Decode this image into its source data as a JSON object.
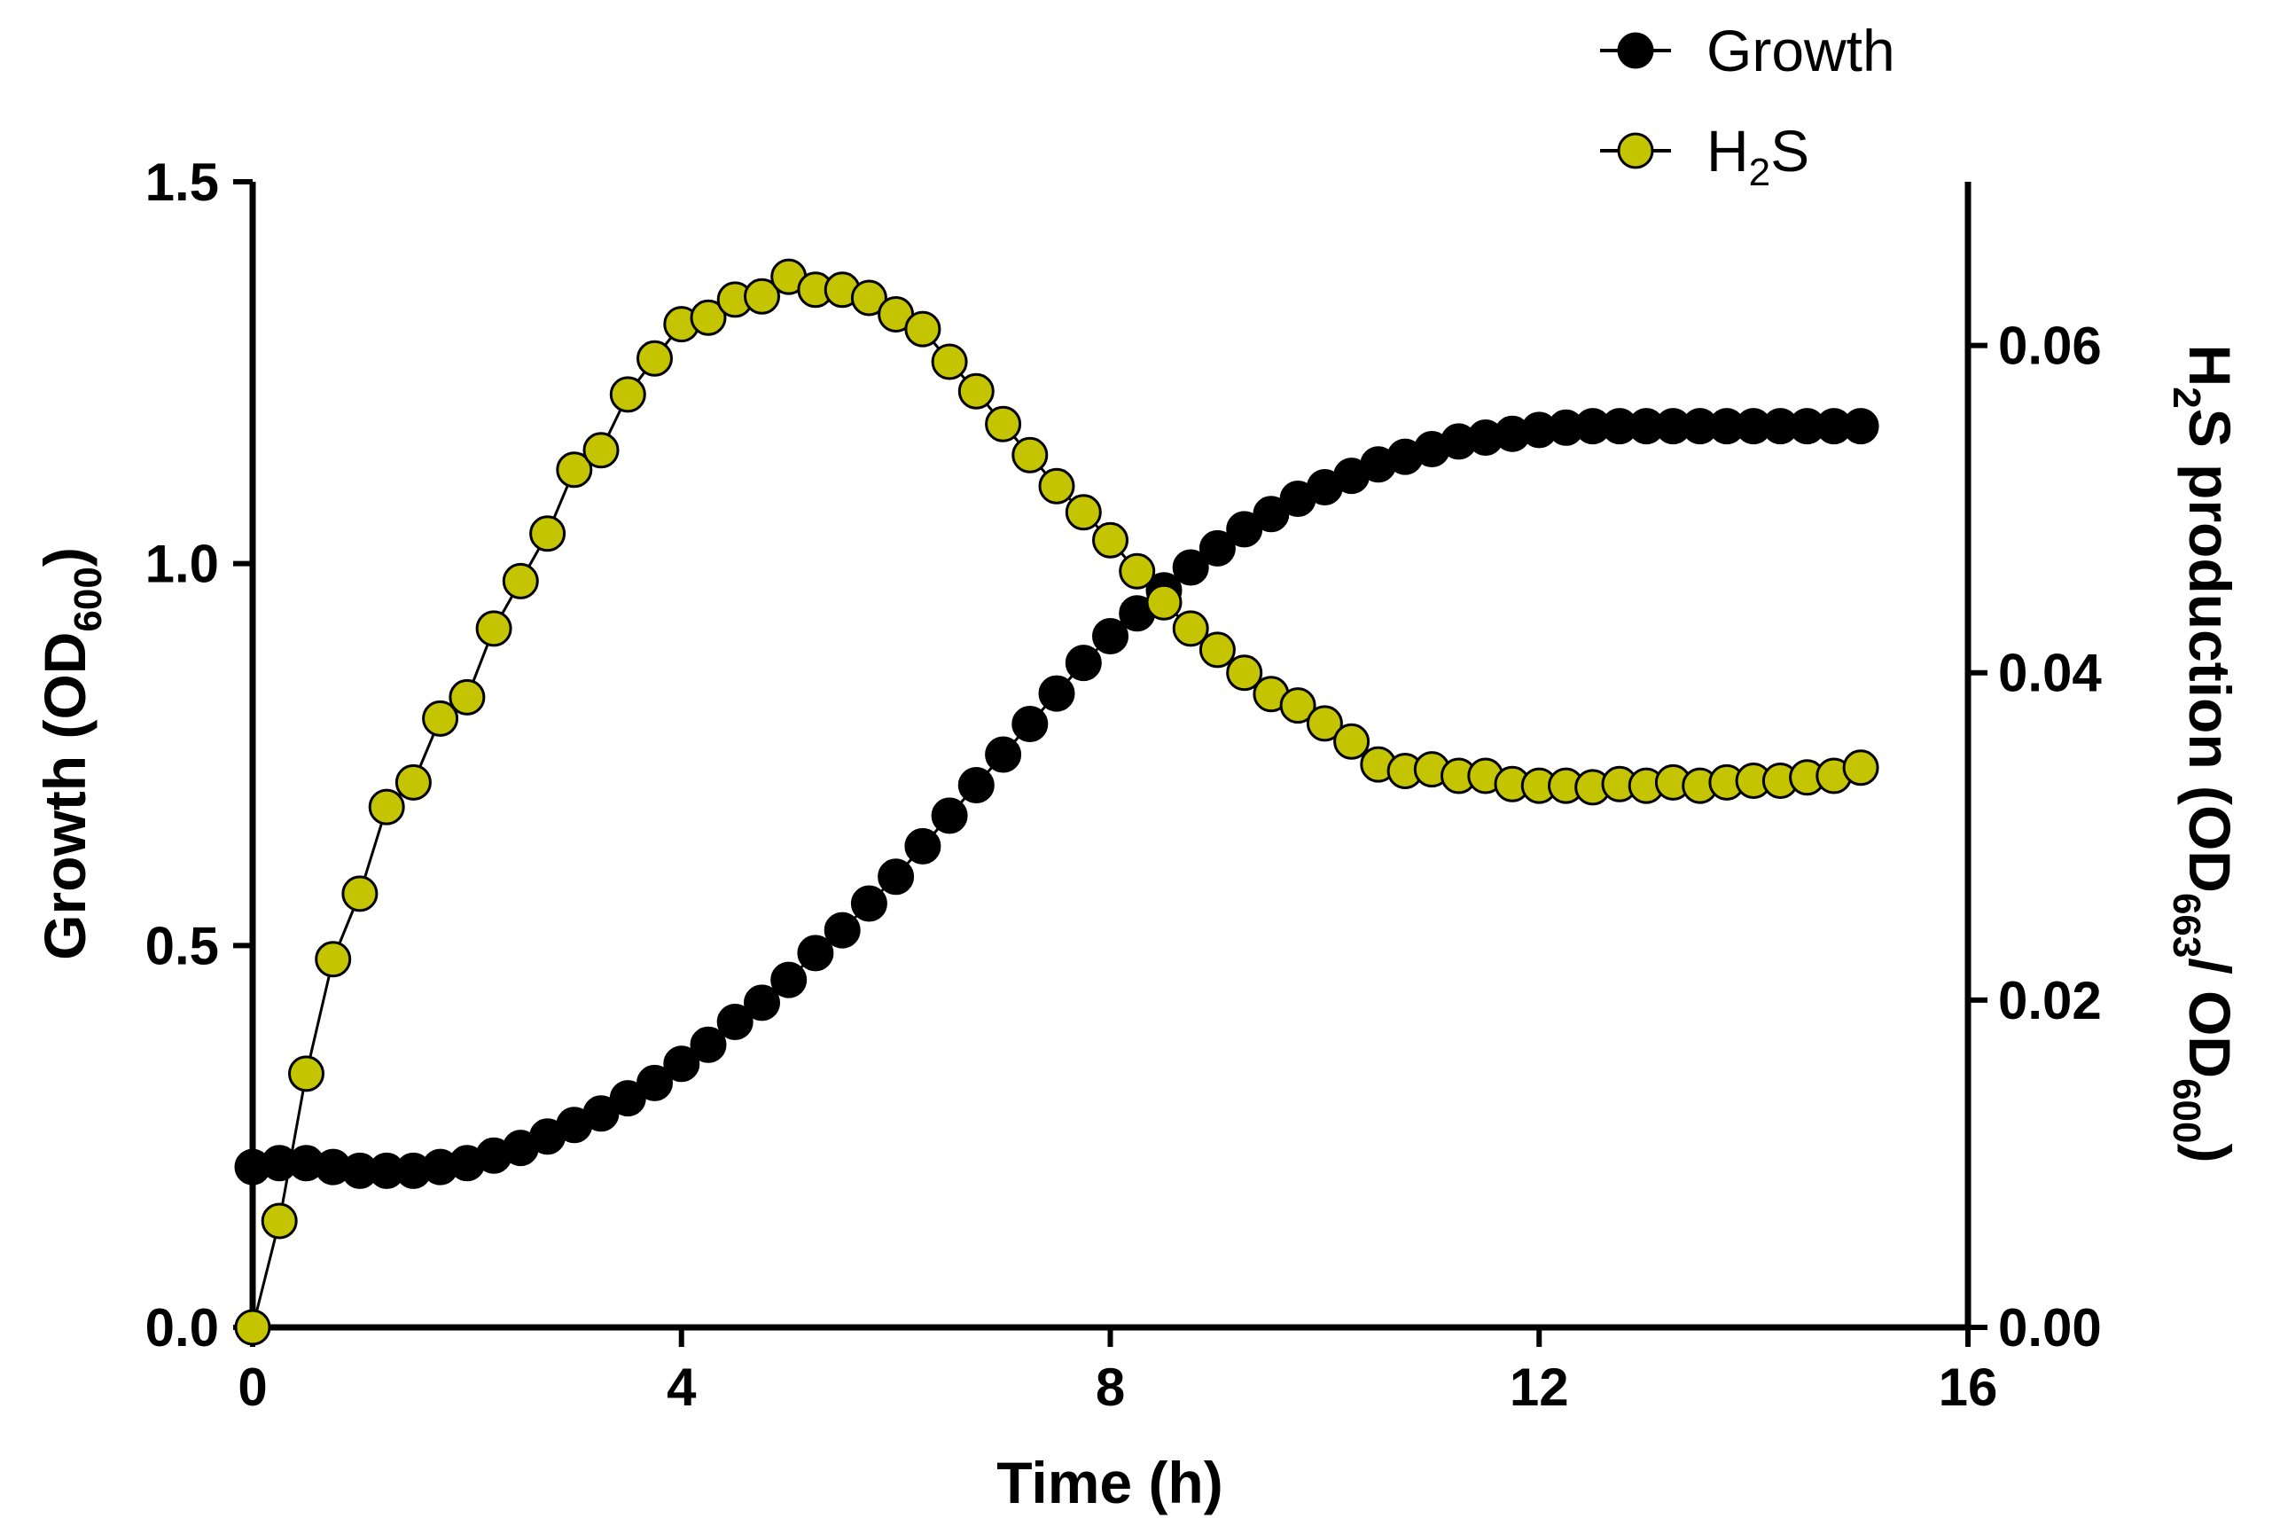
{
  "chart_data": {
    "type": "line",
    "title": "",
    "xlabel": "Time (h)",
    "ylabel": {
      "main": "Growth (OD",
      "sub": "600",
      "end": ")"
    },
    "y2label": {
      "h": "H",
      "h_sub": "2",
      "rest": "S production  (OD",
      "sub1": "663",
      "mid": "/ OD",
      "sub2": "600",
      "end": ")"
    },
    "xlim": [
      0,
      16
    ],
    "ylim": [
      0,
      1.5
    ],
    "y2lim": [
      0,
      0.07
    ],
    "x_ticks": [
      "0",
      "4",
      "8",
      "12",
      "16"
    ],
    "y_ticks": [
      "0.0",
      "0.5",
      "1.0",
      "1.5"
    ],
    "y2_ticks": [
      "0.00",
      "0.02",
      "0.04",
      "0.06"
    ],
    "legend": {
      "position": "top-right",
      "growth": "Growth",
      "h2s_h": "H",
      "h2s_sub": "2",
      "h2s_s": "S"
    },
    "series": [
      {
        "name": "Growth",
        "axis": "left",
        "color": "#000000",
        "edge": "#000000",
        "x": [
          0,
          0.25,
          0.5,
          0.75,
          1,
          1.25,
          1.5,
          1.75,
          2,
          2.25,
          2.5,
          2.75,
          3,
          3.25,
          3.5,
          3.75,
          4,
          4.25,
          4.5,
          4.75,
          5,
          5.25,
          5.5,
          5.75,
          6,
          6.25,
          6.5,
          6.75,
          7,
          7.25,
          7.5,
          7.75,
          8,
          8.25,
          8.5,
          8.75,
          9,
          9.25,
          9.5,
          9.75,
          10,
          10.25,
          10.5,
          10.75,
          11,
          11.25,
          11.5,
          11.75,
          12,
          12.25,
          12.5,
          12.75,
          13,
          13.25,
          13.5,
          13.75,
          14,
          14.25,
          14.5,
          14.75,
          15
        ],
        "values": [
          0.21,
          0.215,
          0.215,
          0.21,
          0.205,
          0.205,
          0.205,
          0.21,
          0.215,
          0.225,
          0.235,
          0.25,
          0.265,
          0.28,
          0.3,
          0.32,
          0.345,
          0.37,
          0.4,
          0.425,
          0.455,
          0.49,
          0.52,
          0.555,
          0.59,
          0.63,
          0.67,
          0.71,
          0.75,
          0.79,
          0.83,
          0.87,
          0.905,
          0.935,
          0.965,
          0.995,
          1.02,
          1.045,
          1.065,
          1.085,
          1.1,
          1.115,
          1.13,
          1.14,
          1.15,
          1.16,
          1.165,
          1.17,
          1.175,
          1.178,
          1.18,
          1.18,
          1.18,
          1.18,
          1.18,
          1.18,
          1.18,
          1.18,
          1.18,
          1.18,
          1.18
        ]
      },
      {
        "name": "H2S",
        "axis": "right",
        "color": "#c4c400",
        "edge": "#000000",
        "x": [
          0,
          0.25,
          0.5,
          0.75,
          1,
          1.25,
          1.5,
          1.75,
          2,
          2.25,
          2.5,
          2.75,
          3,
          3.25,
          3.5,
          3.75,
          4,
          4.25,
          4.5,
          4.75,
          5,
          5.25,
          5.5,
          5.75,
          6,
          6.25,
          6.5,
          6.75,
          7,
          7.25,
          7.5,
          7.75,
          8,
          8.25,
          8.5,
          8.75,
          9,
          9.25,
          9.5,
          9.75,
          10,
          10.25,
          10.5,
          10.75,
          11,
          11.25,
          11.5,
          11.75,
          12,
          12.25,
          12.5,
          12.75,
          13,
          13.25,
          13.5,
          13.75,
          14,
          14.25,
          14.5,
          14.75,
          15
        ],
        "values": [
          0,
          0.0065,
          0.0155,
          0.0225,
          0.0265,
          0.0318,
          0.0333,
          0.0372,
          0.0385,
          0.0427,
          0.0456,
          0.0485,
          0.0524,
          0.0536,
          0.057,
          0.0592,
          0.0613,
          0.0617,
          0.0628,
          0.063,
          0.0642,
          0.0634,
          0.0634,
          0.0629,
          0.0619,
          0.061,
          0.059,
          0.0572,
          0.0552,
          0.0533,
          0.0514,
          0.0498,
          0.0481,
          0.0462,
          0.0443,
          0.0427,
          0.0414,
          0.04,
          0.0387,
          0.038,
          0.0369,
          0.0358,
          0.0344,
          0.034,
          0.0341,
          0.0337,
          0.0337,
          0.0332,
          0.0331,
          0.0331,
          0.033,
          0.0332,
          0.0331,
          0.0333,
          0.0331,
          0.0333,
          0.0334,
          0.0334,
          0.0336,
          0.0337,
          0.0342
        ]
      }
    ]
  }
}
